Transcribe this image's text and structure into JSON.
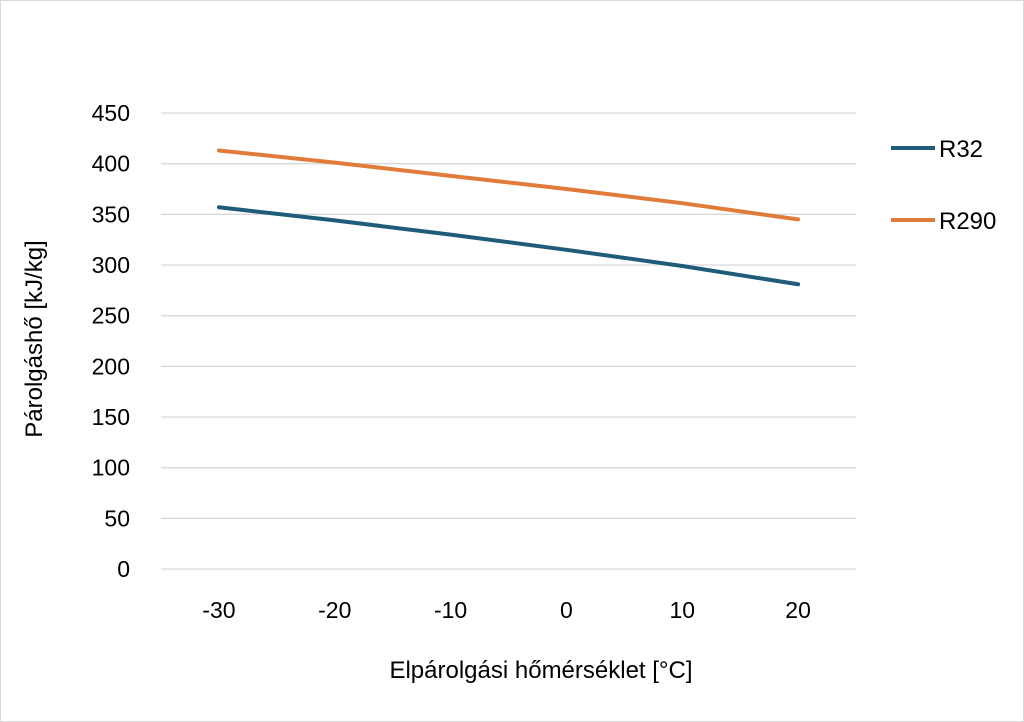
{
  "chart_data": {
    "type": "line",
    "title": "",
    "xlabel": "Elpárolgási hőmérséklet [°C]",
    "ylabel": "Párolgáshő [kJ/kg]",
    "x": [
      -30,
      -20,
      -10,
      0,
      10,
      20
    ],
    "x_tick_labels": [
      "-30",
      "-20",
      "-10",
      "0",
      "10",
      "20"
    ],
    "y_ticks": [
      0,
      50,
      100,
      150,
      200,
      250,
      300,
      350,
      400,
      450
    ],
    "y_tick_labels": [
      "0",
      "50",
      "100",
      "150",
      "200",
      "250",
      "300",
      "350",
      "400",
      "450"
    ],
    "ylim": [
      0,
      450
    ],
    "grid": "horizontal",
    "legend_position": "right",
    "series": [
      {
        "name": "R32",
        "color": "#1f5c7a",
        "values": [
          357,
          344,
          330,
          315,
          299,
          281
        ]
      },
      {
        "name": "R290",
        "color": "#e07b39",
        "values": [
          413,
          401,
          388,
          375,
          361,
          345
        ]
      }
    ]
  }
}
